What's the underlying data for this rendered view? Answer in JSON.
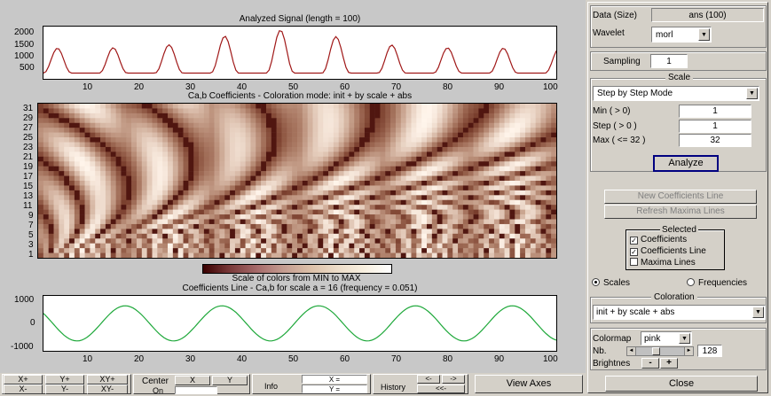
{
  "plot1": {
    "title": "Analyzed Signal  (length = 100)",
    "y_ticks": [
      "2000",
      "1500",
      "1000",
      "500"
    ],
    "x_ticks": [
      "10",
      "20",
      "30",
      "40",
      "50",
      "60",
      "70",
      "80",
      "90",
      "100"
    ]
  },
  "plot2": {
    "title": "Ca,b Coefficients - Coloration mode: init + by scale + abs",
    "y_ticks": [
      "31",
      "29",
      "27",
      "25",
      "23",
      "21",
      "19",
      "17",
      "15",
      "13",
      "11",
      "9",
      "7",
      "5",
      "3",
      "1"
    ]
  },
  "colorbar": {
    "label": "Scale of colors from MIN to MAX"
  },
  "plot3": {
    "title": "Coefficients Line - Ca,b for scale a = 16  (frequency =  0.051)",
    "y_ticks": [
      "1000",
      "0",
      "-1000"
    ],
    "x_ticks": [
      "10",
      "20",
      "30",
      "40",
      "50",
      "60",
      "70",
      "80",
      "90",
      "100"
    ]
  },
  "right_panel": {
    "data_label": "Data (Size)",
    "data_value": "ans  (100)",
    "wavelet_label": "Wavelet",
    "wavelet_value": "morl",
    "sampling_label": "Sampling",
    "sampling_value": "1",
    "scale_title": "Scale",
    "scale_mode": "Step by Step Mode",
    "min_label": "Min  ( > 0)",
    "min_value": "1",
    "step_label": "Step ( > 0 )",
    "step_value": "1",
    "max_label": "Max  ( <= 32 )",
    "max_value": "32",
    "analyze": "Analyze",
    "new_coef_line": "New Coefficients Line",
    "refresh_maxima": "Refresh Maxima Lines",
    "selected_title": "Selected",
    "chk_coefficients": "Coefficients",
    "chk_coefficients_line": "Coefficients Line",
    "chk_maxima_lines": "Maxima Lines",
    "radio_scales": "Scales",
    "radio_frequencies": "Frequencies",
    "coloration_title": "Coloration",
    "coloration_value": "init + by scale + abs",
    "colormap_label": "Colormap",
    "colormap_value": "pink",
    "nb_label": "Nb.",
    "nb_value": "128",
    "brightness_label": "Brightnes",
    "bright_minus": "-",
    "bright_plus": "+",
    "close": "Close"
  },
  "bottom_bar": {
    "xplus": "X+",
    "yplus": "Y+",
    "xyplus": "XY+",
    "xminus": "X-",
    "yminus": "Y-",
    "xyminus": "XY-",
    "center_label": "Center",
    "center_on": "On",
    "center_x": "X",
    "center_y": "Y",
    "info_label": "Info",
    "x_eq": "X =",
    "y_eq": "Y =",
    "history_label": "History",
    "hist_back": "<-",
    "hist_fwd": "->",
    "hist_first": "<<-",
    "view_axes": "View Axes"
  },
  "check_states": {
    "coefficients": true,
    "coefficients_line": true,
    "maxima_lines": false
  },
  "radio_state": "Scales",
  "colors": {
    "signal_line": "#a01818",
    "coef_line": "#1ea83a",
    "window_bg": "#d4d0c8",
    "analyze_border": "#000080"
  }
}
